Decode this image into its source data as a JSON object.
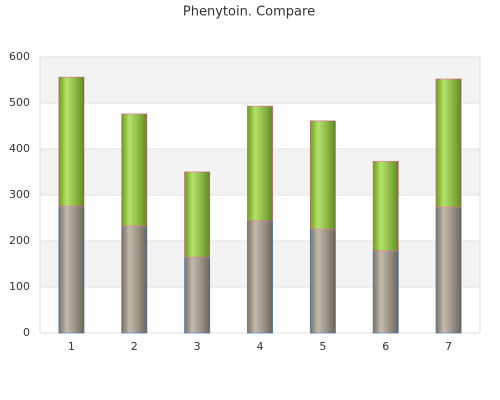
{
  "chart_data": {
    "type": "stacked-bar",
    "title": "Phenytoin. Compare",
    "categories": [
      "1",
      "2",
      "3",
      "4",
      "5",
      "6",
      "7"
    ],
    "series": [
      {
        "color": "#a89c8a",
        "values": [
          276,
          233,
          165,
          244,
          226,
          179,
          274
        ]
      },
      {
        "color": "#94d62c",
        "values": [
          280,
          243,
          185,
          249,
          235,
          194,
          278
        ]
      }
    ],
    "ylim": [
      0,
      600
    ],
    "yticks": [
      0,
      100,
      200,
      300,
      400,
      500,
      600
    ],
    "grid": true
  }
}
